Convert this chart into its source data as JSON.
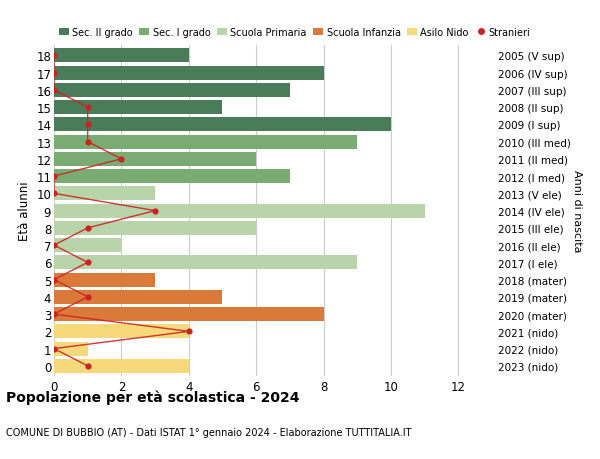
{
  "ages": [
    18,
    17,
    16,
    15,
    14,
    13,
    12,
    11,
    10,
    9,
    8,
    7,
    6,
    5,
    4,
    3,
    2,
    1,
    0
  ],
  "right_labels": [
    "2005 (V sup)",
    "2006 (IV sup)",
    "2007 (III sup)",
    "2008 (II sup)",
    "2009 (I sup)",
    "2010 (III med)",
    "2011 (II med)",
    "2012 (I med)",
    "2013 (V ele)",
    "2014 (IV ele)",
    "2015 (III ele)",
    "2016 (II ele)",
    "2017 (I ele)",
    "2018 (mater)",
    "2019 (mater)",
    "2020 (mater)",
    "2021 (nido)",
    "2022 (nido)",
    "2023 (nido)"
  ],
  "bar_values": [
    4,
    8,
    7,
    5,
    10,
    9,
    6,
    7,
    3,
    11,
    6,
    2,
    9,
    3,
    5,
    8,
    4,
    1,
    4
  ],
  "bar_colors": [
    "#4a7c59",
    "#4a7c59",
    "#4a7c59",
    "#4a7c59",
    "#4a7c59",
    "#7aab72",
    "#7aab72",
    "#7aab72",
    "#b8d4a8",
    "#b8d4a8",
    "#b8d4a8",
    "#b8d4a8",
    "#b8d4a8",
    "#d97a3a",
    "#d97a3a",
    "#d97a3a",
    "#f5d97a",
    "#f5d97a",
    "#f5d97a"
  ],
  "stranieri_values": [
    0,
    0,
    0,
    1,
    1,
    1,
    2,
    0,
    0,
    3,
    1,
    0,
    1,
    0,
    1,
    0,
    4,
    0,
    1
  ],
  "legend_labels": [
    "Sec. II grado",
    "Sec. I grado",
    "Scuola Primaria",
    "Scuola Infanzia",
    "Asilo Nido",
    "Stranieri"
  ],
  "legend_colors": [
    "#4a7c59",
    "#7aab72",
    "#b8d4a8",
    "#d97a3a",
    "#f5d97a",
    "#cc2222"
  ],
  "title": "Popolazione per età scolastica - 2024",
  "subtitle": "COMUNE DI BUBBIO (AT) - Dati ISTAT 1° gennaio 2024 - Elaborazione TUTTITALIA.IT",
  "ylabel": "Età alunni",
  "right_ylabel": "Anni di nascita",
  "xlabel_values": [
    0,
    2,
    4,
    6,
    8,
    10,
    12
  ],
  "xlim": [
    0,
    13
  ],
  "background_color": "#ffffff",
  "grid_color": "#cccccc",
  "bar_height": 0.82
}
